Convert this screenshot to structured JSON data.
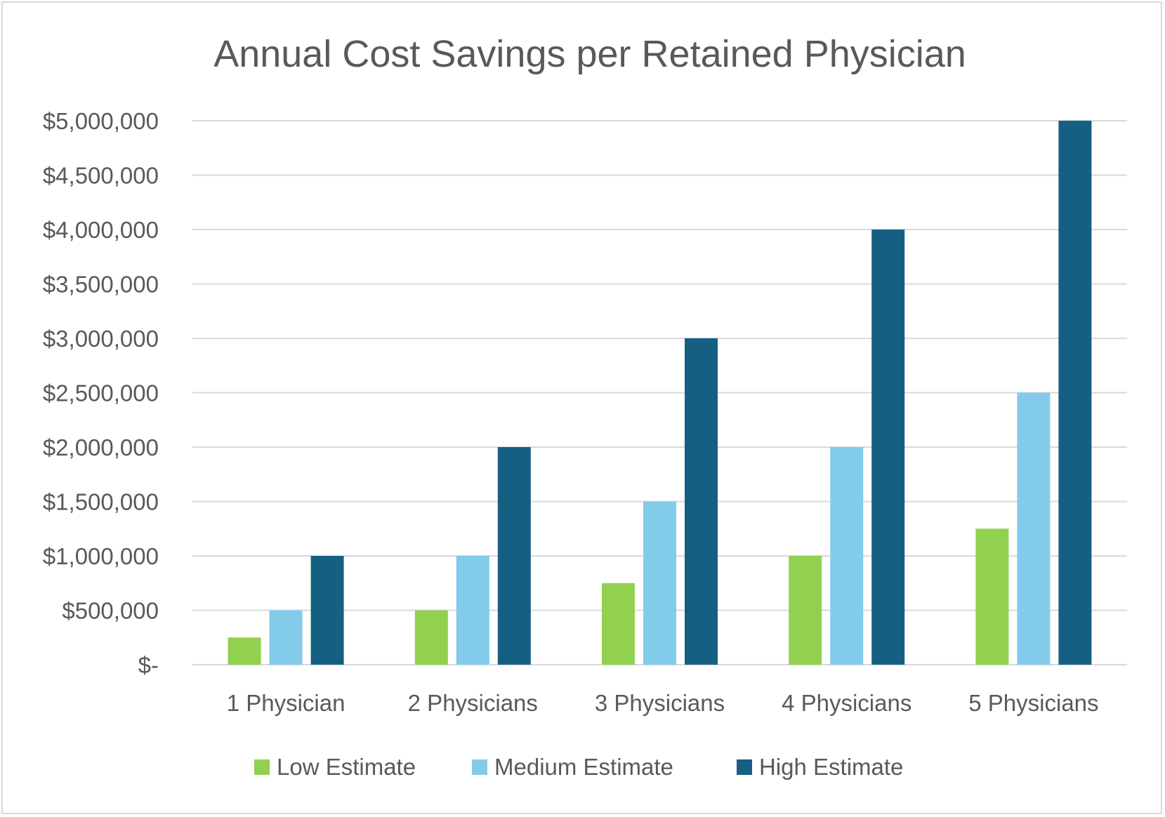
{
  "chart_data": {
    "type": "bar",
    "title": "Annual Cost Savings per Retained Physician",
    "xlabel": "",
    "ylabel": "",
    "categories": [
      "1 Physician",
      "2 Physicians",
      "3 Physicians",
      "4 Physicians",
      "5 Physicians"
    ],
    "series": [
      {
        "name": "Low Estimate",
        "color": "#92d050",
        "values": [
          250000,
          500000,
          750000,
          1000000,
          1250000
        ]
      },
      {
        "name": "Medium Estimate",
        "color": "#83cbeb",
        "values": [
          500000,
          1000000,
          1500000,
          2000000,
          2500000
        ]
      },
      {
        "name": "High Estimate",
        "color": "#156082",
        "values": [
          1000000,
          2000000,
          3000000,
          4000000,
          5000000
        ]
      }
    ],
    "ylim": [
      0,
      5000000
    ],
    "yticks": [
      0,
      500000,
      1000000,
      1500000,
      2000000,
      2500000,
      3000000,
      3500000,
      4000000,
      4500000,
      5000000
    ],
    "ytick_labels": [
      "$-",
      "$500,000",
      "$1,000,000",
      "$1,500,000",
      "$2,000,000",
      "$2,500,000",
      "$3,000,000",
      "$3,500,000",
      "$4,000,000",
      "$4,500,000",
      "$5,000,000"
    ],
    "grid": true,
    "legend": "bottom"
  }
}
